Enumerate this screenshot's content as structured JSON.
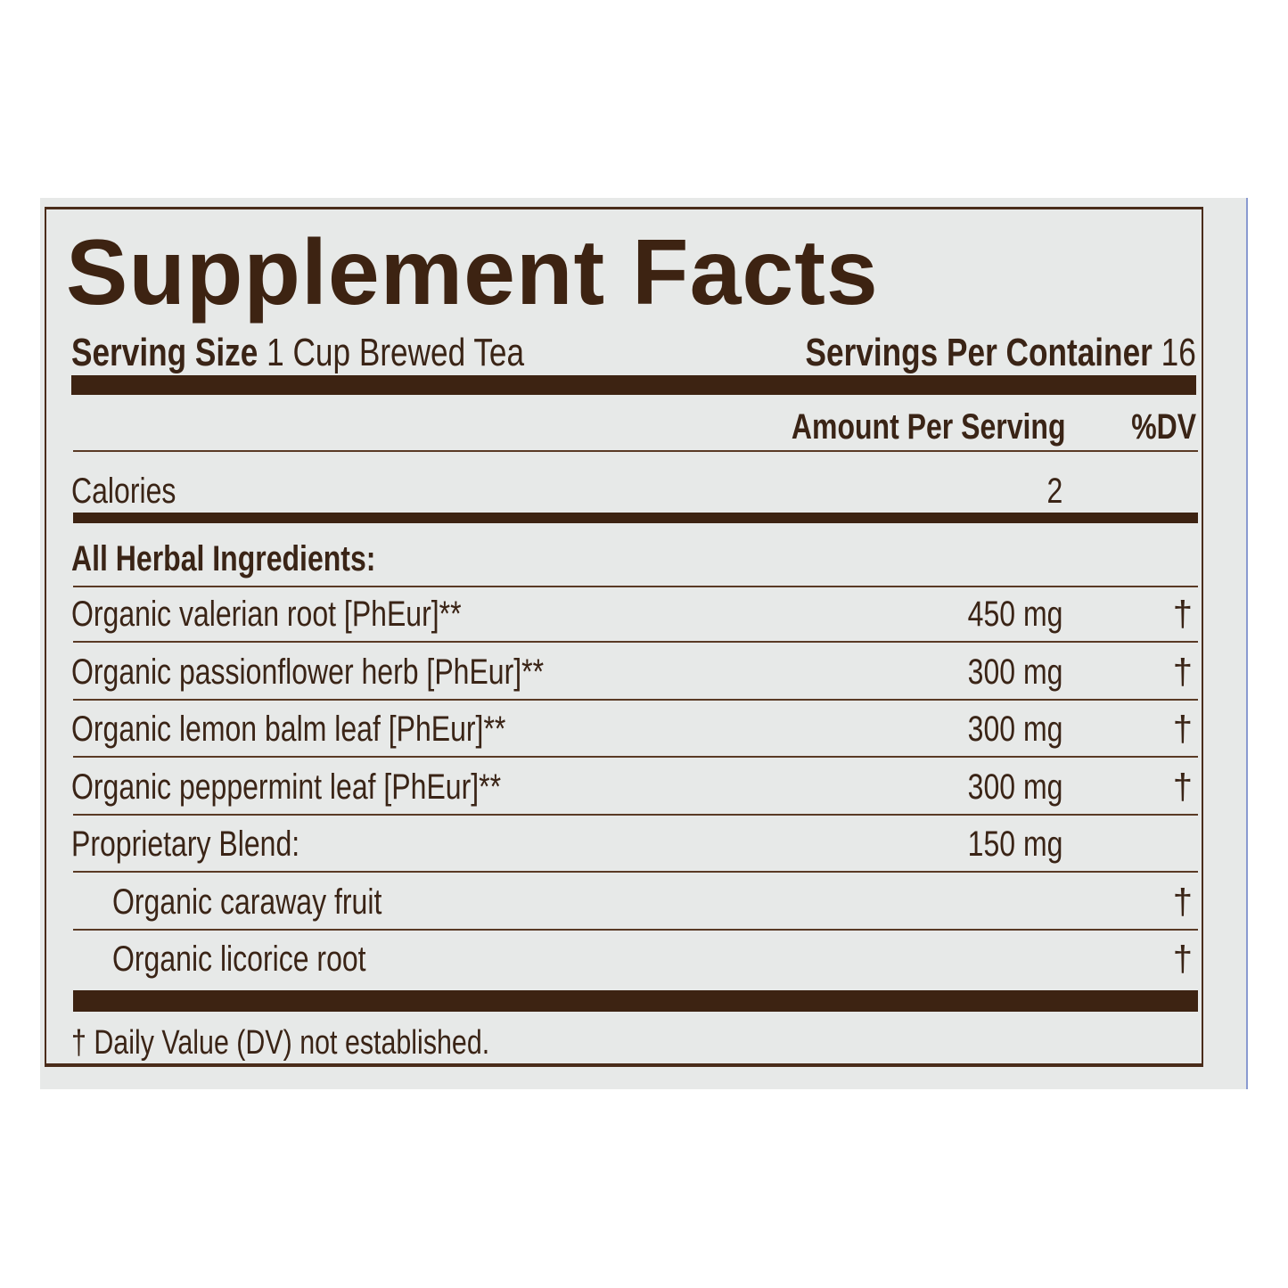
{
  "title": "Supplement Facts",
  "serving_size_label": "Serving Size",
  "serving_size_value": "1 Cup Brewed Tea",
  "servings_per_container_label": "Servings Per Container",
  "servings_per_container_value": "16",
  "header": {
    "amount": "Amount Per Serving",
    "dv": "%DV"
  },
  "calories": {
    "label": "Calories",
    "amount": "2"
  },
  "section_label": "All Herbal Ingredients:",
  "ingredients": [
    {
      "name": "Organic valerian root [PhEur]**",
      "amount": "450 mg",
      "dv": "†"
    },
    {
      "name": "Organic passionflower herb [PhEur]**",
      "amount": "300 mg",
      "dv": "†"
    },
    {
      "name": "Organic lemon balm leaf [PhEur]**",
      "amount": "300 mg",
      "dv": "†"
    },
    {
      "name": "Organic peppermint leaf [PhEur]**",
      "amount": "300 mg",
      "dv": "†"
    },
    {
      "name": "Proprietary Blend:",
      "amount": "150 mg",
      "dv": ""
    },
    {
      "name": "Organic caraway fruit",
      "amount": "",
      "dv": "†"
    },
    {
      "name": "Organic licorice root",
      "amount": "",
      "dv": "†"
    }
  ],
  "footnote": "† Daily Value (DV) not established.",
  "colors": {
    "ink": "#3d2312",
    "background": "#e7e9e8"
  }
}
